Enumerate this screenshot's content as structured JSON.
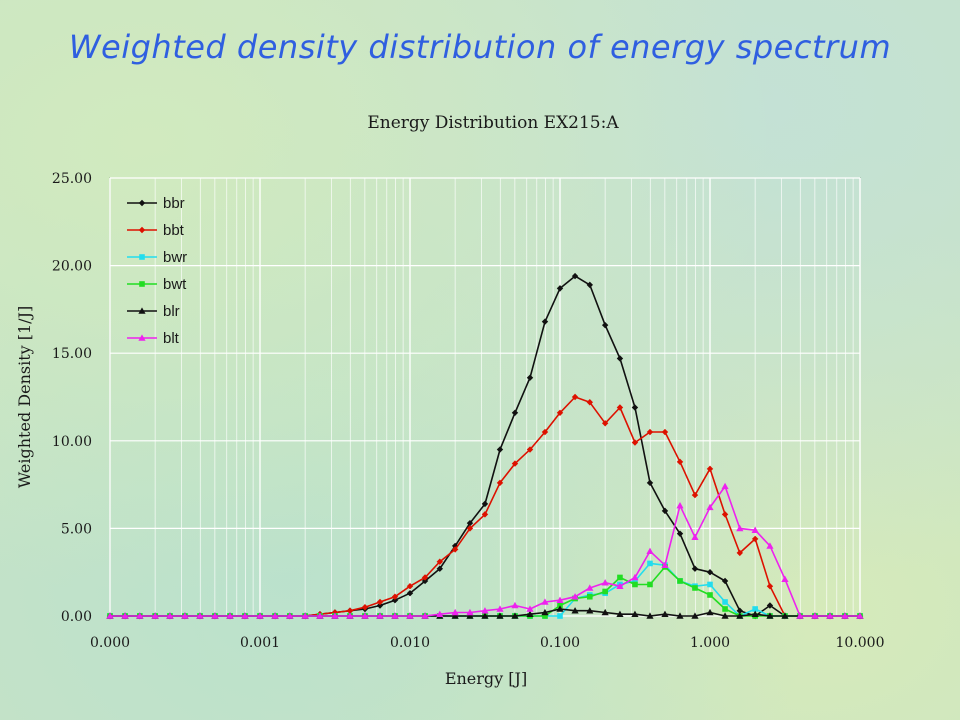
{
  "slide_title": "Weighted density distribution of energy spectrum",
  "chart_data": {
    "type": "line",
    "title": "Energy Distribution EX215:A",
    "xlabel": "Energy [J]",
    "ylabel": "Weighted Density [1/J]",
    "xscale": "log",
    "xlim": [
      0.0001,
      10
    ],
    "ylim": [
      0,
      25
    ],
    "grid": true,
    "legend_position": "top-left",
    "xtick_labels": [
      "0.000",
      "0.001",
      "0.010",
      "0.100",
      "1.000",
      "10.000"
    ],
    "ytick_labels": [
      "0.00",
      "5.00",
      "10.00",
      "15.00",
      "20.00",
      "25.00"
    ],
    "x": [
      0.0001,
      0.000126,
      0.000158,
      0.0002,
      0.000251,
      0.000316,
      0.000398,
      0.000501,
      0.000631,
      0.000794,
      0.001,
      0.00126,
      0.00158,
      0.002,
      0.00251,
      0.00316,
      0.00398,
      0.00501,
      0.00631,
      0.00794,
      0.01,
      0.0126,
      0.0158,
      0.02,
      0.0251,
      0.0316,
      0.0398,
      0.0501,
      0.0631,
      0.0794,
      0.1,
      0.126,
      0.158,
      0.2,
      0.251,
      0.316,
      0.398,
      0.501,
      0.631,
      0.794,
      1.0,
      1.26,
      1.58,
      2.0,
      2.51,
      3.16,
      3.98,
      5.01,
      6.31,
      7.94,
      10.0
    ],
    "series": [
      {
        "name": "bbr",
        "color": "#111111",
        "marker": "diamond",
        "values": [
          0,
          0,
          0,
          0,
          0,
          0,
          0,
          0,
          0,
          0,
          0,
          0,
          0,
          0,
          0.1,
          0.2,
          0.3,
          0.4,
          0.6,
          0.9,
          1.3,
          2.0,
          2.7,
          4.0,
          5.3,
          6.4,
          9.5,
          11.6,
          13.6,
          16.8,
          18.7,
          19.4,
          18.9,
          16.6,
          14.7,
          11.9,
          7.6,
          6.0,
          4.7,
          2.7,
          2.5,
          2.0,
          0.3,
          0,
          0.6,
          0,
          0,
          0,
          0,
          0,
          0
        ]
      },
      {
        "name": "bbt",
        "color": "#dd1100",
        "marker": "diamond",
        "values": [
          0,
          0,
          0,
          0,
          0,
          0,
          0,
          0,
          0,
          0,
          0,
          0,
          0,
          0,
          0.1,
          0.2,
          0.3,
          0.5,
          0.8,
          1.1,
          1.7,
          2.2,
          3.1,
          3.8,
          5.0,
          5.8,
          7.6,
          8.7,
          9.5,
          10.5,
          11.6,
          12.5,
          12.2,
          11.0,
          11.9,
          9.9,
          10.5,
          10.5,
          8.8,
          6.9,
          8.4,
          5.8,
          3.6,
          4.4,
          1.7,
          0,
          0,
          0,
          0,
          0,
          0
        ]
      },
      {
        "name": "bwr",
        "color": "#22ddee",
        "marker": "square",
        "values": [
          0,
          0,
          0,
          0,
          0,
          0,
          0,
          0,
          0,
          0,
          0,
          0,
          0,
          0,
          0,
          0,
          0,
          0,
          0,
          0,
          0,
          0,
          0,
          0,
          0,
          0,
          0,
          0,
          0,
          0,
          0,
          1.0,
          1.2,
          1.3,
          1.8,
          2.0,
          3.0,
          2.9,
          2.0,
          1.7,
          1.8,
          0.8,
          0,
          0.4,
          0,
          0,
          0,
          0,
          0,
          0,
          0
        ]
      },
      {
        "name": "bwt",
        "color": "#22dd22",
        "marker": "square",
        "values": [
          0,
          0,
          0,
          0,
          0,
          0,
          0,
          0,
          0,
          0,
          0,
          0,
          0,
          0,
          0,
          0,
          0,
          0,
          0,
          0,
          0,
          0,
          0,
          0,
          0,
          0,
          0,
          0,
          0,
          0,
          0.6,
          1.0,
          1.1,
          1.4,
          2.2,
          1.8,
          1.8,
          2.8,
          2.0,
          1.6,
          1.2,
          0.4,
          0,
          0,
          0,
          0,
          0,
          0,
          0,
          0,
          0
        ]
      },
      {
        "name": "blr",
        "color": "#111111",
        "marker": "triangle",
        "values": [
          0,
          0,
          0,
          0,
          0,
          0,
          0,
          0,
          0,
          0,
          0,
          0,
          0,
          0,
          0,
          0,
          0,
          0,
          0,
          0,
          0,
          0,
          0,
          0,
          0,
          0,
          0,
          0,
          0.1,
          0.2,
          0.4,
          0.3,
          0.3,
          0.2,
          0.1,
          0.1,
          0,
          0.1,
          0,
          0,
          0.2,
          0,
          0,
          0.1,
          0,
          0,
          0,
          0,
          0,
          0,
          0
        ]
      },
      {
        "name": "blt",
        "color": "#ee22ee",
        "marker": "triangle",
        "values": [
          0,
          0,
          0,
          0,
          0,
          0,
          0,
          0,
          0,
          0,
          0,
          0,
          0,
          0,
          0,
          0,
          0,
          0,
          0,
          0,
          0,
          0,
          0.1,
          0.2,
          0.2,
          0.3,
          0.4,
          0.6,
          0.4,
          0.8,
          0.9,
          1.1,
          1.6,
          1.9,
          1.7,
          2.2,
          3.7,
          2.9,
          6.3,
          4.5,
          6.2,
          7.4,
          5.0,
          4.9,
          4.0,
          2.1,
          0,
          0,
          0,
          0,
          0
        ]
      }
    ]
  }
}
